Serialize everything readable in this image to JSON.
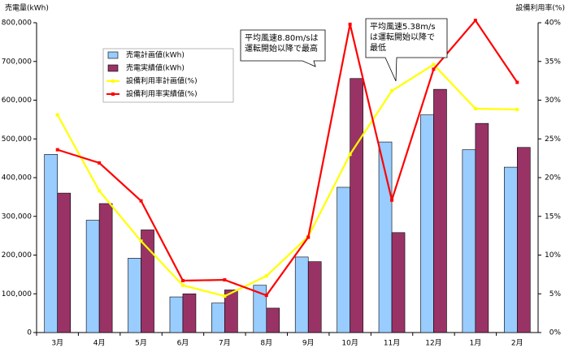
{
  "chart_data": {
    "type": "bar-line",
    "y_label": "売電量(kWh)",
    "y2_label": "設備利用率(%)",
    "categories": [
      "3月",
      "4月",
      "5月",
      "6月",
      "7月",
      "8月",
      "9月",
      "10月",
      "11月",
      "12月",
      "1月",
      "2月"
    ],
    "series": [
      {
        "name": "売電計画値(kWh)",
        "type": "bar",
        "axis": "y",
        "color": "#99ccff",
        "values": [
          460000,
          290000,
          192000,
          92000,
          76000,
          122000,
          195000,
          375000,
          492000,
          562000,
          472000,
          427000
        ]
      },
      {
        "name": "売電実績値(kWh)",
        "type": "bar",
        "axis": "y",
        "color": "#993366",
        "values": [
          360000,
          333000,
          265000,
          100000,
          110000,
          63000,
          183000,
          656000,
          258000,
          628000,
          540000,
          478000
        ]
      },
      {
        "name": "設備利用率計画値(%)",
        "type": "line",
        "axis": "y2",
        "color": "#ffff00",
        "values": [
          28.1,
          18.3,
          11.8,
          6.1,
          4.7,
          7.3,
          12.4,
          23.0,
          31.2,
          34.6,
          28.9,
          28.8
        ]
      },
      {
        "name": "設備利用率実績値(%)",
        "type": "line",
        "axis": "y2",
        "color": "#ff0000",
        "values": [
          23.6,
          21.9,
          17.0,
          6.7,
          6.8,
          4.8,
          12.3,
          39.8,
          17.1,
          34.0,
          40.3,
          32.3
        ]
      }
    ],
    "ylim": [
      0,
      800000
    ],
    "yticks": [
      0,
      {
        "value": 100000,
        "label": "100,000"
      },
      {
        "value": 200000,
        "label": "200,000"
      },
      {
        "value": 300000,
        "label": "300,000"
      },
      {
        "value": 400000,
        "label": "400,000"
      },
      {
        "value": 500000,
        "label": "500,000"
      },
      {
        "value": 600000,
        "label": "600,000"
      },
      {
        "value": 700000,
        "label": "700,000"
      },
      {
        "value": 800000,
        "label": "800,000"
      }
    ],
    "y2lim": [
      0,
      40
    ],
    "y2ticks": [
      {
        "value": 0,
        "label": "0%"
      },
      {
        "value": 5,
        "label": "5%"
      },
      {
        "value": 10,
        "label": "10%"
      },
      {
        "value": 15,
        "label": "15%"
      },
      {
        "value": 20,
        "label": "20%"
      },
      {
        "value": 25,
        "label": "25%"
      },
      {
        "value": 30,
        "label": "30%"
      },
      {
        "value": 35,
        "label": "35%"
      },
      {
        "value": 40,
        "label": "40%"
      }
    ],
    "grid": false,
    "annotations": [
      {
        "lines": [
          "平均風速8.80m/sは",
          "運転開始以降で最高"
        ]
      },
      {
        "lines": [
          "平均風速5.38m/s",
          "は運転開始以降で",
          "最低"
        ]
      }
    ]
  }
}
